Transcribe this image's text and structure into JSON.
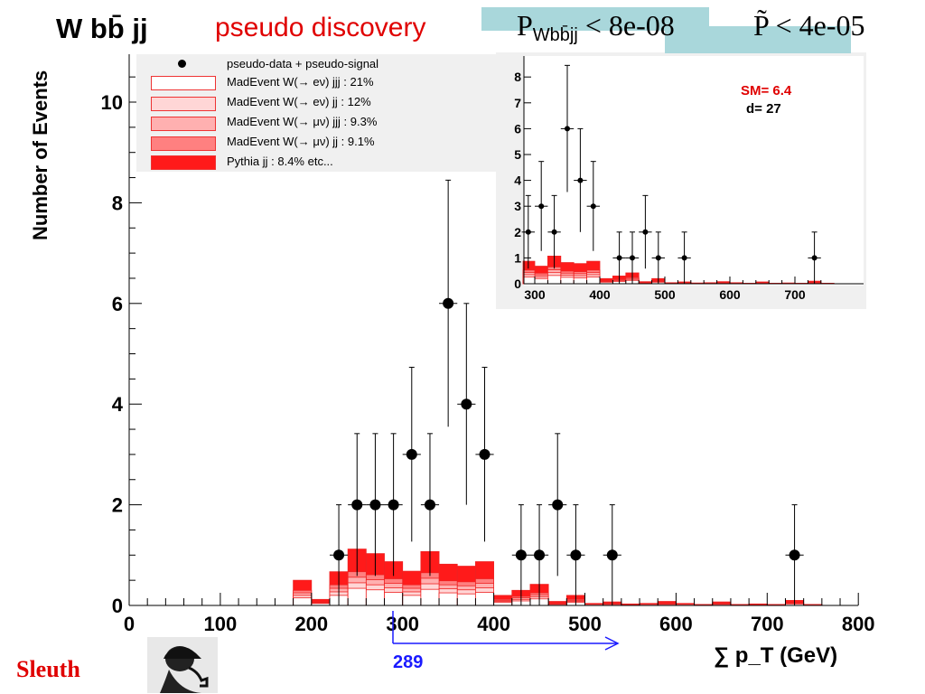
{
  "header": {
    "title": "W bb̄ jj",
    "subtitle": "pseudo discovery",
    "p_value_symbol": "P",
    "p_value_subscript": "Wbb̄jj",
    "p_value_text": "< 8e-08",
    "p_tilde_symbol": "P̃",
    "p_tilde_text": "< 4e-05",
    "highlight_color": "#a9d7db"
  },
  "logo": {
    "text": "Sleuth",
    "image": "sherlock-silhouette"
  },
  "marker": {
    "value": 289,
    "label": "289",
    "color": "#1a1aff"
  },
  "inset": {
    "sm_label": "SM= 6.4",
    "d_label": "d= 27"
  },
  "chart_data": {
    "type": "bar",
    "subtype": "stacked-histogram-with-data-points",
    "xlabel": "∑ p_T (GeV)",
    "xlabel_main": "∑ p",
    "xlabel_sub": "T",
    "xlabel_unit": "(GeV)",
    "ylabel": "Number of Events",
    "xlim": [
      0,
      800
    ],
    "ylim": [
      0,
      10.6
    ],
    "x_ticks": [
      "0",
      "100",
      "200",
      "300",
      "400",
      "500",
      "600",
      "700",
      "800"
    ],
    "y_ticks": [
      "0",
      "2",
      "4",
      "6",
      "8",
      "10"
    ],
    "grid": false,
    "legend_placement": "top-left",
    "bin_width": 20,
    "bin_lows": [
      180,
      200,
      220,
      240,
      260,
      280,
      300,
      320,
      340,
      360,
      380,
      400,
      420,
      440,
      460,
      480,
      500,
      520,
      540,
      560,
      580,
      600,
      620,
      640,
      660,
      680,
      700,
      720,
      740
    ],
    "series": [
      {
        "name": "MadEvent W(→ eν) jjj : 21%",
        "color": "#ffffff",
        "values": [
          0.15,
          0.04,
          0.2,
          0.34,
          0.31,
          0.26,
          0.2,
          0.32,
          0.25,
          0.23,
          0.26,
          0.06,
          0.09,
          0.13,
          0.02,
          0.06,
          0.02,
          0.02,
          0.01,
          0.02,
          0.02,
          0.02,
          0.01,
          0.02,
          0.01,
          0.01,
          0.01,
          0.03,
          0.01
        ]
      },
      {
        "name": "MadEvent W(→ eν) jj : 12%",
        "color": "#ffd6d6",
        "values": [
          0.05,
          0.01,
          0.07,
          0.11,
          0.1,
          0.09,
          0.07,
          0.11,
          0.08,
          0.08,
          0.09,
          0.02,
          0.03,
          0.04,
          0.01,
          0.02,
          0,
          0.01,
          0,
          0,
          0.01,
          0,
          0,
          0.01,
          0,
          0,
          0,
          0.01,
          0
        ]
      },
      {
        "name": "MadEvent W(→ μν) jjj : 9.3%",
        "color": "#ffb0b0",
        "values": [
          0.05,
          0.01,
          0.07,
          0.11,
          0.1,
          0.09,
          0.07,
          0.11,
          0.08,
          0.08,
          0.09,
          0.02,
          0.03,
          0.04,
          0.01,
          0.02,
          0,
          0.01,
          0,
          0,
          0.01,
          0,
          0,
          0.01,
          0,
          0,
          0,
          0.01,
          0
        ]
      },
      {
        "name": "MadEvent W(→ μν) jj : 9.1%",
        "color": "#ff8080",
        "values": [
          0.05,
          0.01,
          0.07,
          0.11,
          0.1,
          0.09,
          0.07,
          0.11,
          0.08,
          0.08,
          0.09,
          0.02,
          0.03,
          0.04,
          0.01,
          0.02,
          0,
          0.01,
          0,
          0,
          0.01,
          0,
          0,
          0.01,
          0,
          0,
          0,
          0.01,
          0
        ]
      },
      {
        "name": "Pythia jj : 8.4% etc...",
        "color": "#ff1a1a",
        "values": [
          0.2,
          0.05,
          0.26,
          0.45,
          0.42,
          0.34,
          0.27,
          0.42,
          0.33,
          0.31,
          0.34,
          0.08,
          0.12,
          0.17,
          0.03,
          0.08,
          0.02,
          0.02,
          0.02,
          0.02,
          0.03,
          0.02,
          0.01,
          0.02,
          0.01,
          0.02,
          0.01,
          0.04,
          0.01
        ]
      }
    ],
    "data_points": {
      "name": "pseudo-data + pseudo-signal",
      "x": [
        230,
        250,
        270,
        290,
        310,
        330,
        350,
        370,
        390,
        430,
        450,
        470,
        490,
        530,
        730
      ],
      "y": [
        1,
        2,
        2,
        2,
        3,
        2,
        6,
        4,
        3,
        1,
        1,
        2,
        1,
        1,
        1
      ]
    },
    "inset": {
      "xlim": [
        280,
        760
      ],
      "ylim": [
        0,
        8.8
      ],
      "x_ticks": [
        "300",
        "400",
        "500",
        "600",
        "700"
      ],
      "y_ticks": [
        "0",
        "1",
        "2",
        "3",
        "4",
        "5",
        "6",
        "7",
        "8"
      ]
    }
  }
}
